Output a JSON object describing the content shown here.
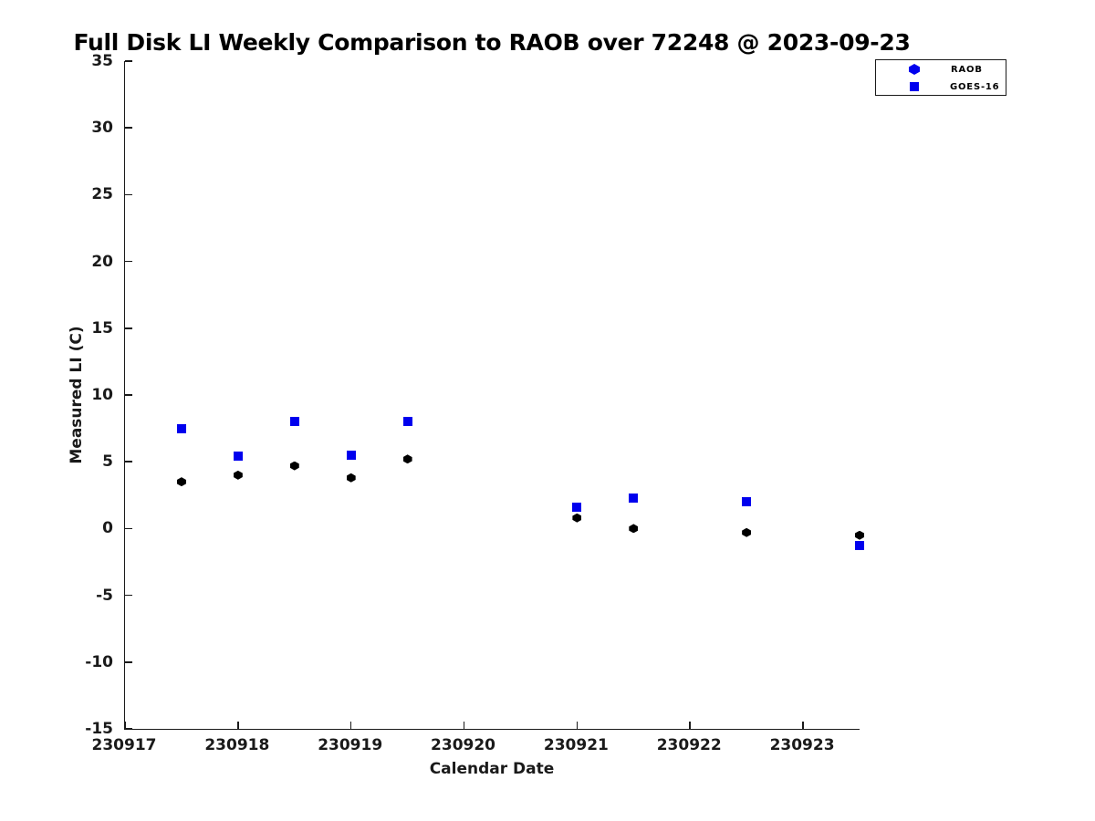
{
  "page": {
    "background": "#ffffff"
  },
  "chart_data": {
    "type": "scatter",
    "title": "Full Disk LI Weekly Comparison to RAOB over 72248 @ 2023-09-23",
    "xlabel": "Calendar Date",
    "ylabel": "Measured LI (C)",
    "xlim": [
      230917,
      230923.5
    ],
    "ylim": [
      -15,
      35
    ],
    "x_tick_values": [
      230917,
      230918,
      230919,
      230920,
      230921,
      230922,
      230923
    ],
    "x_tick_labels": [
      "230917",
      "230918",
      "230919",
      "230920",
      "230921",
      "230922",
      "230923"
    ],
    "y_tick_values": [
      35,
      30,
      25,
      20,
      15,
      10,
      5,
      0,
      -5,
      -10,
      -15
    ],
    "y_tick_labels": [
      "35",
      "30",
      "25",
      "20",
      "15",
      "10",
      "5",
      "0",
      "-5",
      "-10",
      "-15"
    ],
    "grid": false,
    "legend_position": "upper-right-outside",
    "x": [
      230917.5,
      230918,
      230918.5,
      230919,
      230919.5,
      230921,
      230921.5,
      230922.5,
      230923.5
    ],
    "series": [
      {
        "name": "RAOB",
        "marker": "hexagram",
        "marker_color": "#000000",
        "legend_marker_color": "#0000EE",
        "values": [
          3.5,
          4.0,
          4.7,
          3.8,
          5.2,
          0.8,
          0.0,
          -0.3,
          -0.5
        ]
      },
      {
        "name": "GOES-16",
        "marker": "square",
        "marker_color": "#0000EE",
        "legend_marker_color": "#0000EE",
        "values": [
          7.5,
          5.4,
          8.0,
          5.5,
          8.0,
          1.6,
          2.3,
          2.0,
          -1.3
        ]
      }
    ],
    "axis_color": "#1a1a1a"
  }
}
